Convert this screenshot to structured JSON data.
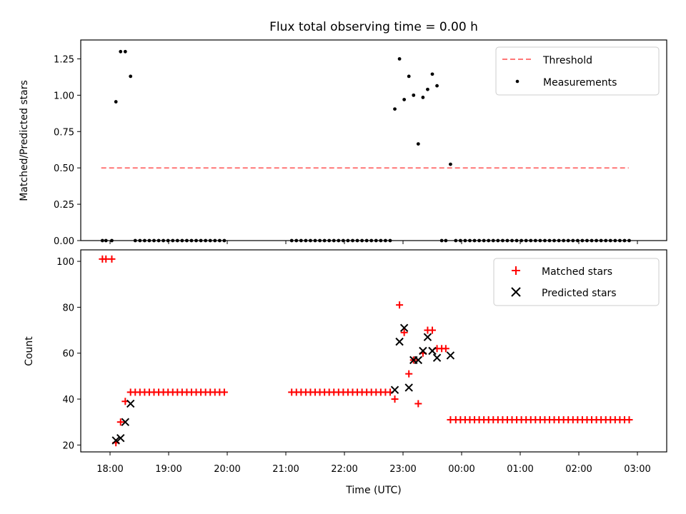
{
  "chart_data": [
    {
      "type": "scatter",
      "title": "Flux total observing time = 0.00 h",
      "xlabel": "",
      "ylabel": "Matched/Predicted stars",
      "xlim": [
        17.5,
        27.5
      ],
      "ylim": [
        0,
        1.38
      ],
      "yticks": [
        0.0,
        0.25,
        0.5,
        0.75,
        1.0,
        1.25
      ],
      "ytick_labels": [
        "0.00",
        "0.25",
        "0.50",
        "0.75",
        "1.00",
        "1.25"
      ],
      "legend_position": "top-right",
      "threshold": {
        "name": "Threshold",
        "value": 0.5,
        "x_range": [
          17.85,
          26.85
        ],
        "color": "#ff7777"
      },
      "series": [
        {
          "name": "Measurements",
          "color": "#000000",
          "points": [
            [
              17.87,
              0
            ],
            [
              17.93,
              0
            ],
            [
              18.03,
              0
            ],
            [
              18.1,
              0.955
            ],
            [
              18.18,
              1.3
            ],
            [
              18.26,
              1.3
            ],
            [
              18.35,
              1.13
            ],
            [
              18.43,
              0
            ],
            [
              18.51,
              0
            ],
            [
              18.59,
              0
            ],
            [
              18.67,
              0
            ],
            [
              18.75,
              0
            ],
            [
              18.83,
              0
            ],
            [
              18.91,
              0
            ],
            [
              18.99,
              0
            ],
            [
              19.07,
              0
            ],
            [
              19.15,
              0
            ],
            [
              19.23,
              0
            ],
            [
              19.31,
              0
            ],
            [
              19.39,
              0
            ],
            [
              19.47,
              0
            ],
            [
              19.55,
              0
            ],
            [
              19.63,
              0
            ],
            [
              19.71,
              0
            ],
            [
              19.79,
              0
            ],
            [
              19.87,
              0
            ],
            [
              19.95,
              0
            ],
            [
              21.1,
              0
            ],
            [
              21.18,
              0
            ],
            [
              21.26,
              0
            ],
            [
              21.34,
              0
            ],
            [
              21.42,
              0
            ],
            [
              21.5,
              0
            ],
            [
              21.58,
              0
            ],
            [
              21.66,
              0
            ],
            [
              21.74,
              0
            ],
            [
              21.82,
              0
            ],
            [
              21.9,
              0
            ],
            [
              21.98,
              0
            ],
            [
              22.06,
              0
            ],
            [
              22.14,
              0
            ],
            [
              22.22,
              0
            ],
            [
              22.3,
              0
            ],
            [
              22.38,
              0
            ],
            [
              22.46,
              0
            ],
            [
              22.54,
              0
            ],
            [
              22.62,
              0
            ],
            [
              22.7,
              0
            ],
            [
              22.78,
              0
            ],
            [
              22.86,
              0.905
            ],
            [
              22.94,
              1.25
            ],
            [
              23.02,
              0.97
            ],
            [
              23.1,
              1.13
            ],
            [
              23.18,
              1.0
            ],
            [
              23.26,
              0.665
            ],
            [
              23.34,
              0.985
            ],
            [
              23.42,
              1.04
            ],
            [
              23.5,
              1.145
            ],
            [
              23.58,
              1.065
            ],
            [
              23.66,
              0
            ],
            [
              23.73,
              0
            ],
            [
              23.81,
              0.525
            ],
            [
              23.9,
              0
            ],
            [
              23.98,
              0
            ],
            [
              24.06,
              0
            ],
            [
              24.14,
              0
            ],
            [
              24.22,
              0
            ],
            [
              24.3,
              0
            ],
            [
              24.38,
              0
            ],
            [
              24.46,
              0
            ],
            [
              24.54,
              0
            ],
            [
              24.62,
              0
            ],
            [
              24.7,
              0
            ],
            [
              24.78,
              0
            ],
            [
              24.86,
              0
            ],
            [
              24.94,
              0
            ],
            [
              25.02,
              0
            ],
            [
              25.1,
              0
            ],
            [
              25.18,
              0
            ],
            [
              25.26,
              0
            ],
            [
              25.34,
              0
            ],
            [
              25.42,
              0
            ],
            [
              25.5,
              0
            ],
            [
              25.58,
              0
            ],
            [
              25.66,
              0
            ],
            [
              25.74,
              0
            ],
            [
              25.82,
              0
            ],
            [
              25.9,
              0
            ],
            [
              25.98,
              0
            ],
            [
              26.06,
              0
            ],
            [
              26.14,
              0
            ],
            [
              26.22,
              0
            ],
            [
              26.3,
              0
            ],
            [
              26.38,
              0
            ],
            [
              26.46,
              0
            ],
            [
              26.54,
              0
            ],
            [
              26.62,
              0
            ],
            [
              26.7,
              0
            ],
            [
              26.78,
              0
            ],
            [
              26.86,
              0
            ]
          ]
        }
      ]
    },
    {
      "type": "scatter",
      "title": "",
      "xlabel": "Time (UTC)",
      "ylabel": "Count",
      "xlim": [
        17.5,
        27.5
      ],
      "ylim": [
        17,
        105
      ],
      "yticks": [
        20,
        40,
        60,
        80,
        100
      ],
      "ytick_labels": [
        "20",
        "40",
        "60",
        "80",
        "100"
      ],
      "xticks": [
        18,
        19,
        20,
        21,
        22,
        23,
        24,
        25,
        26,
        27
      ],
      "xtick_labels": [
        "18:00",
        "19:00",
        "20:00",
        "21:00",
        "22:00",
        "23:00",
        "00:00",
        "01:00",
        "02:00",
        "03:00"
      ],
      "legend_position": "top-right",
      "series": [
        {
          "name": "Matched stars",
          "marker": "plus",
          "color": "#ff0000",
          "points": [
            [
              17.87,
              101
            ],
            [
              17.93,
              101
            ],
            [
              18.03,
              101
            ],
            [
              18.1,
              21
            ],
            [
              18.18,
              30
            ],
            [
              18.26,
              39
            ],
            [
              18.35,
              43
            ],
            [
              18.43,
              43
            ],
            [
              18.51,
              43
            ],
            [
              18.59,
              43
            ],
            [
              18.67,
              43
            ],
            [
              18.75,
              43
            ],
            [
              18.83,
              43
            ],
            [
              18.91,
              43
            ],
            [
              18.99,
              43
            ],
            [
              19.07,
              43
            ],
            [
              19.15,
              43
            ],
            [
              19.23,
              43
            ],
            [
              19.31,
              43
            ],
            [
              19.39,
              43
            ],
            [
              19.47,
              43
            ],
            [
              19.55,
              43
            ],
            [
              19.63,
              43
            ],
            [
              19.71,
              43
            ],
            [
              19.79,
              43
            ],
            [
              19.87,
              43
            ],
            [
              19.95,
              43
            ],
            [
              21.1,
              43
            ],
            [
              21.18,
              43
            ],
            [
              21.26,
              43
            ],
            [
              21.34,
              43
            ],
            [
              21.42,
              43
            ],
            [
              21.5,
              43
            ],
            [
              21.58,
              43
            ],
            [
              21.66,
              43
            ],
            [
              21.74,
              43
            ],
            [
              21.82,
              43
            ],
            [
              21.9,
              43
            ],
            [
              21.98,
              43
            ],
            [
              22.06,
              43
            ],
            [
              22.14,
              43
            ],
            [
              22.22,
              43
            ],
            [
              22.3,
              43
            ],
            [
              22.38,
              43
            ],
            [
              22.46,
              43
            ],
            [
              22.54,
              43
            ],
            [
              22.62,
              43
            ],
            [
              22.7,
              43
            ],
            [
              22.78,
              43
            ],
            [
              22.86,
              40
            ],
            [
              22.94,
              81
            ],
            [
              23.02,
              69
            ],
            [
              23.1,
              51
            ],
            [
              23.18,
              57
            ],
            [
              23.26,
              38
            ],
            [
              23.34,
              60
            ],
            [
              23.42,
              70
            ],
            [
              23.5,
              70
            ],
            [
              23.58,
              62
            ],
            [
              23.66,
              62
            ],
            [
              23.73,
              62
            ],
            [
              23.81,
              31
            ],
            [
              23.9,
              31
            ],
            [
              23.98,
              31
            ],
            [
              24.06,
              31
            ],
            [
              24.14,
              31
            ],
            [
              24.22,
              31
            ],
            [
              24.3,
              31
            ],
            [
              24.38,
              31
            ],
            [
              24.46,
              31
            ],
            [
              24.54,
              31
            ],
            [
              24.62,
              31
            ],
            [
              24.7,
              31
            ],
            [
              24.78,
              31
            ],
            [
              24.86,
              31
            ],
            [
              24.94,
              31
            ],
            [
              25.02,
              31
            ],
            [
              25.1,
              31
            ],
            [
              25.18,
              31
            ],
            [
              25.26,
              31
            ],
            [
              25.34,
              31
            ],
            [
              25.42,
              31
            ],
            [
              25.5,
              31
            ],
            [
              25.58,
              31
            ],
            [
              25.66,
              31
            ],
            [
              25.74,
              31
            ],
            [
              25.82,
              31
            ],
            [
              25.9,
              31
            ],
            [
              25.98,
              31
            ],
            [
              26.06,
              31
            ],
            [
              26.14,
              31
            ],
            [
              26.22,
              31
            ],
            [
              26.3,
              31
            ],
            [
              26.38,
              31
            ],
            [
              26.46,
              31
            ],
            [
              26.54,
              31
            ],
            [
              26.62,
              31
            ],
            [
              26.7,
              31
            ],
            [
              26.78,
              31
            ],
            [
              26.86,
              31
            ]
          ]
        },
        {
          "name": "Predicted stars",
          "marker": "x",
          "color": "#000000",
          "points": [
            [
              18.1,
              22
            ],
            [
              18.18,
              23
            ],
            [
              18.26,
              30
            ],
            [
              18.35,
              38
            ],
            [
              22.86,
              44
            ],
            [
              22.94,
              65
            ],
            [
              23.02,
              71
            ],
            [
              23.1,
              45
            ],
            [
              23.18,
              57
            ],
            [
              23.26,
              57
            ],
            [
              23.34,
              61
            ],
            [
              23.42,
              67
            ],
            [
              23.5,
              61
            ],
            [
              23.58,
              58
            ],
            [
              23.81,
              59
            ]
          ]
        }
      ]
    }
  ]
}
